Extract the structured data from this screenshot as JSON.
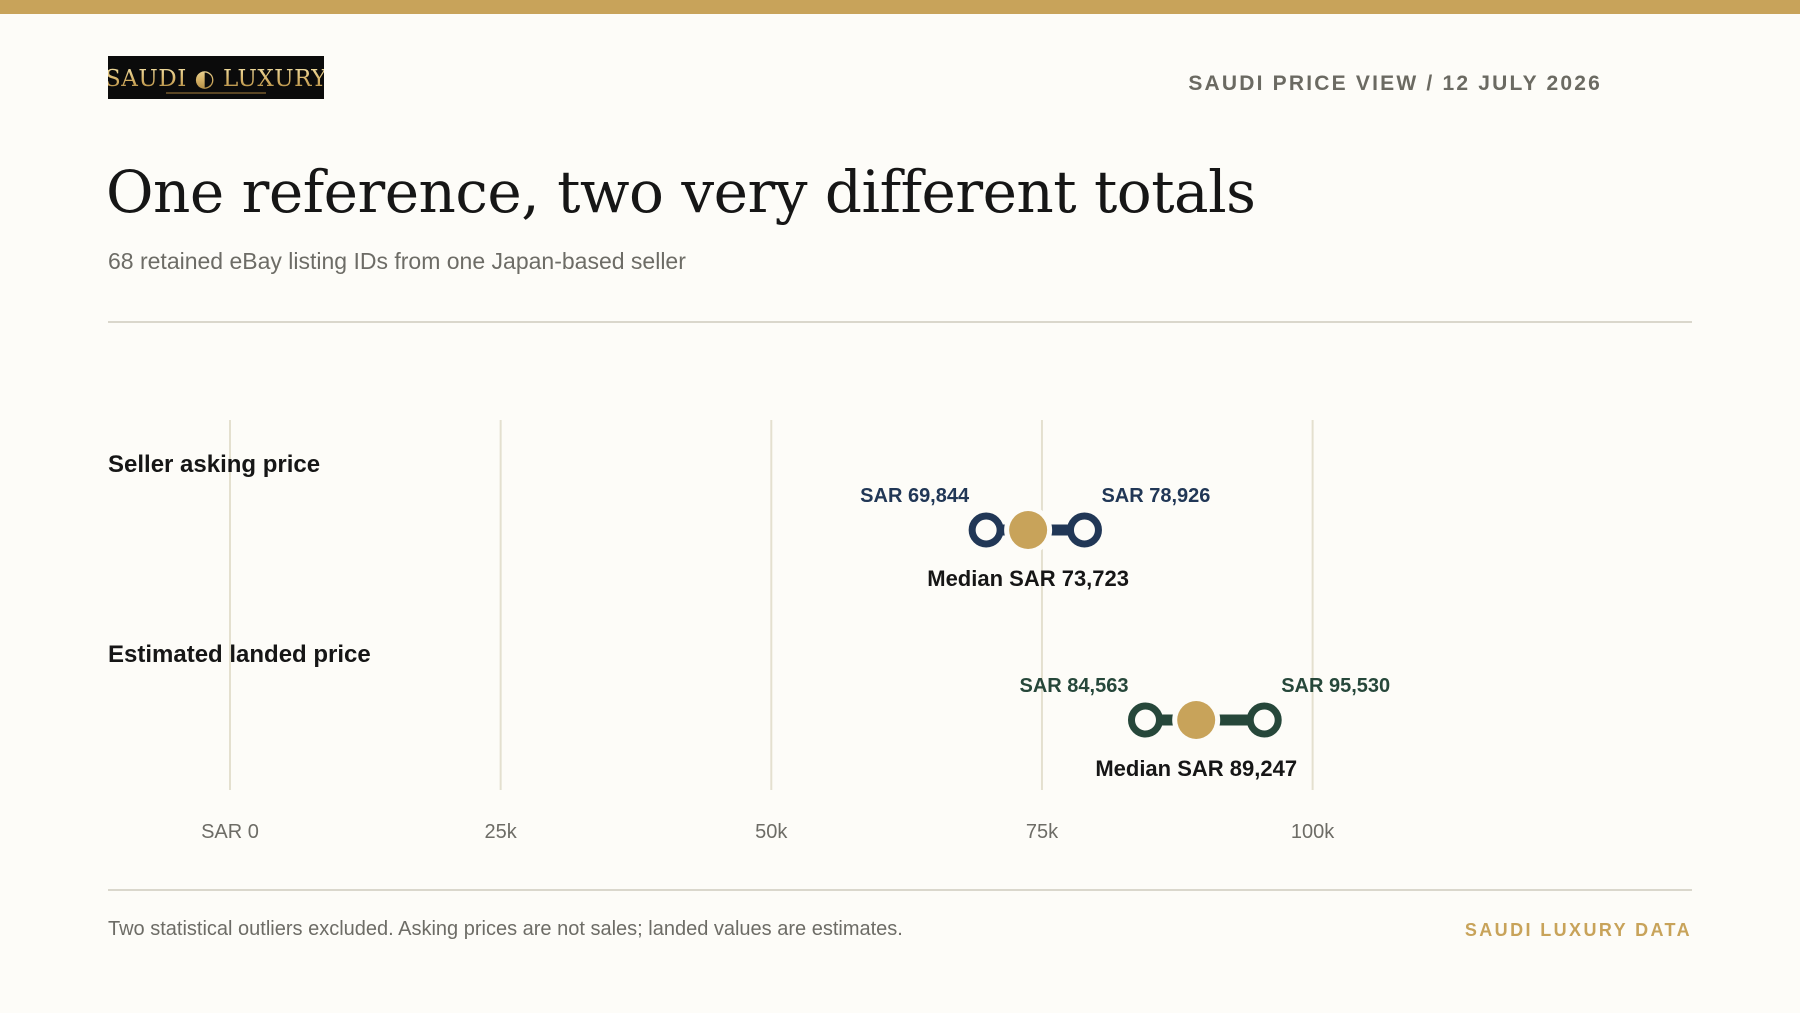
{
  "header": {
    "logo_text": "SAUDI LUXURY",
    "meta": "SAUDI PRICE VIEW / 12 JULY 2026"
  },
  "title": "One reference, two very different totals",
  "subtitle": "68 retained eBay listing IDs from one Japan-based seller",
  "footer": {
    "note": "Two statistical outliers excluded. Asking prices are not sales; landed values are estimates.",
    "brand": "SAUDI LUXURY DATA"
  },
  "colors": {
    "accent_gold": "#c8a35a",
    "asking_navy": "#213756",
    "landed_green": "#26473a",
    "grid": "#e4e0cf",
    "background": "#fdfcf8"
  },
  "chart_data": {
    "type": "range-dot",
    "xlim": [
      0,
      110000
    ],
    "x_ticks": [
      {
        "value": 0,
        "label": "SAR 0"
      },
      {
        "value": 25000,
        "label": "25k"
      },
      {
        "value": 50000,
        "label": "50k"
      },
      {
        "value": 75000,
        "label": "75k"
      },
      {
        "value": 100000,
        "label": "100k"
      }
    ],
    "grid": true,
    "series": [
      {
        "name": "Seller asking price",
        "low": 69844,
        "low_label": "SAR 69,844",
        "median": 73723,
        "median_label": "Median SAR 73,723",
        "high": 78926,
        "high_label": "SAR 78,926",
        "color": "#213756"
      },
      {
        "name": "Estimated landed price",
        "low": 84563,
        "low_label": "SAR 84,563",
        "median": 89247,
        "median_label": "Median SAR 89,247",
        "high": 95530,
        "high_label": "SAR 95,530",
        "color": "#26473a"
      }
    ]
  }
}
